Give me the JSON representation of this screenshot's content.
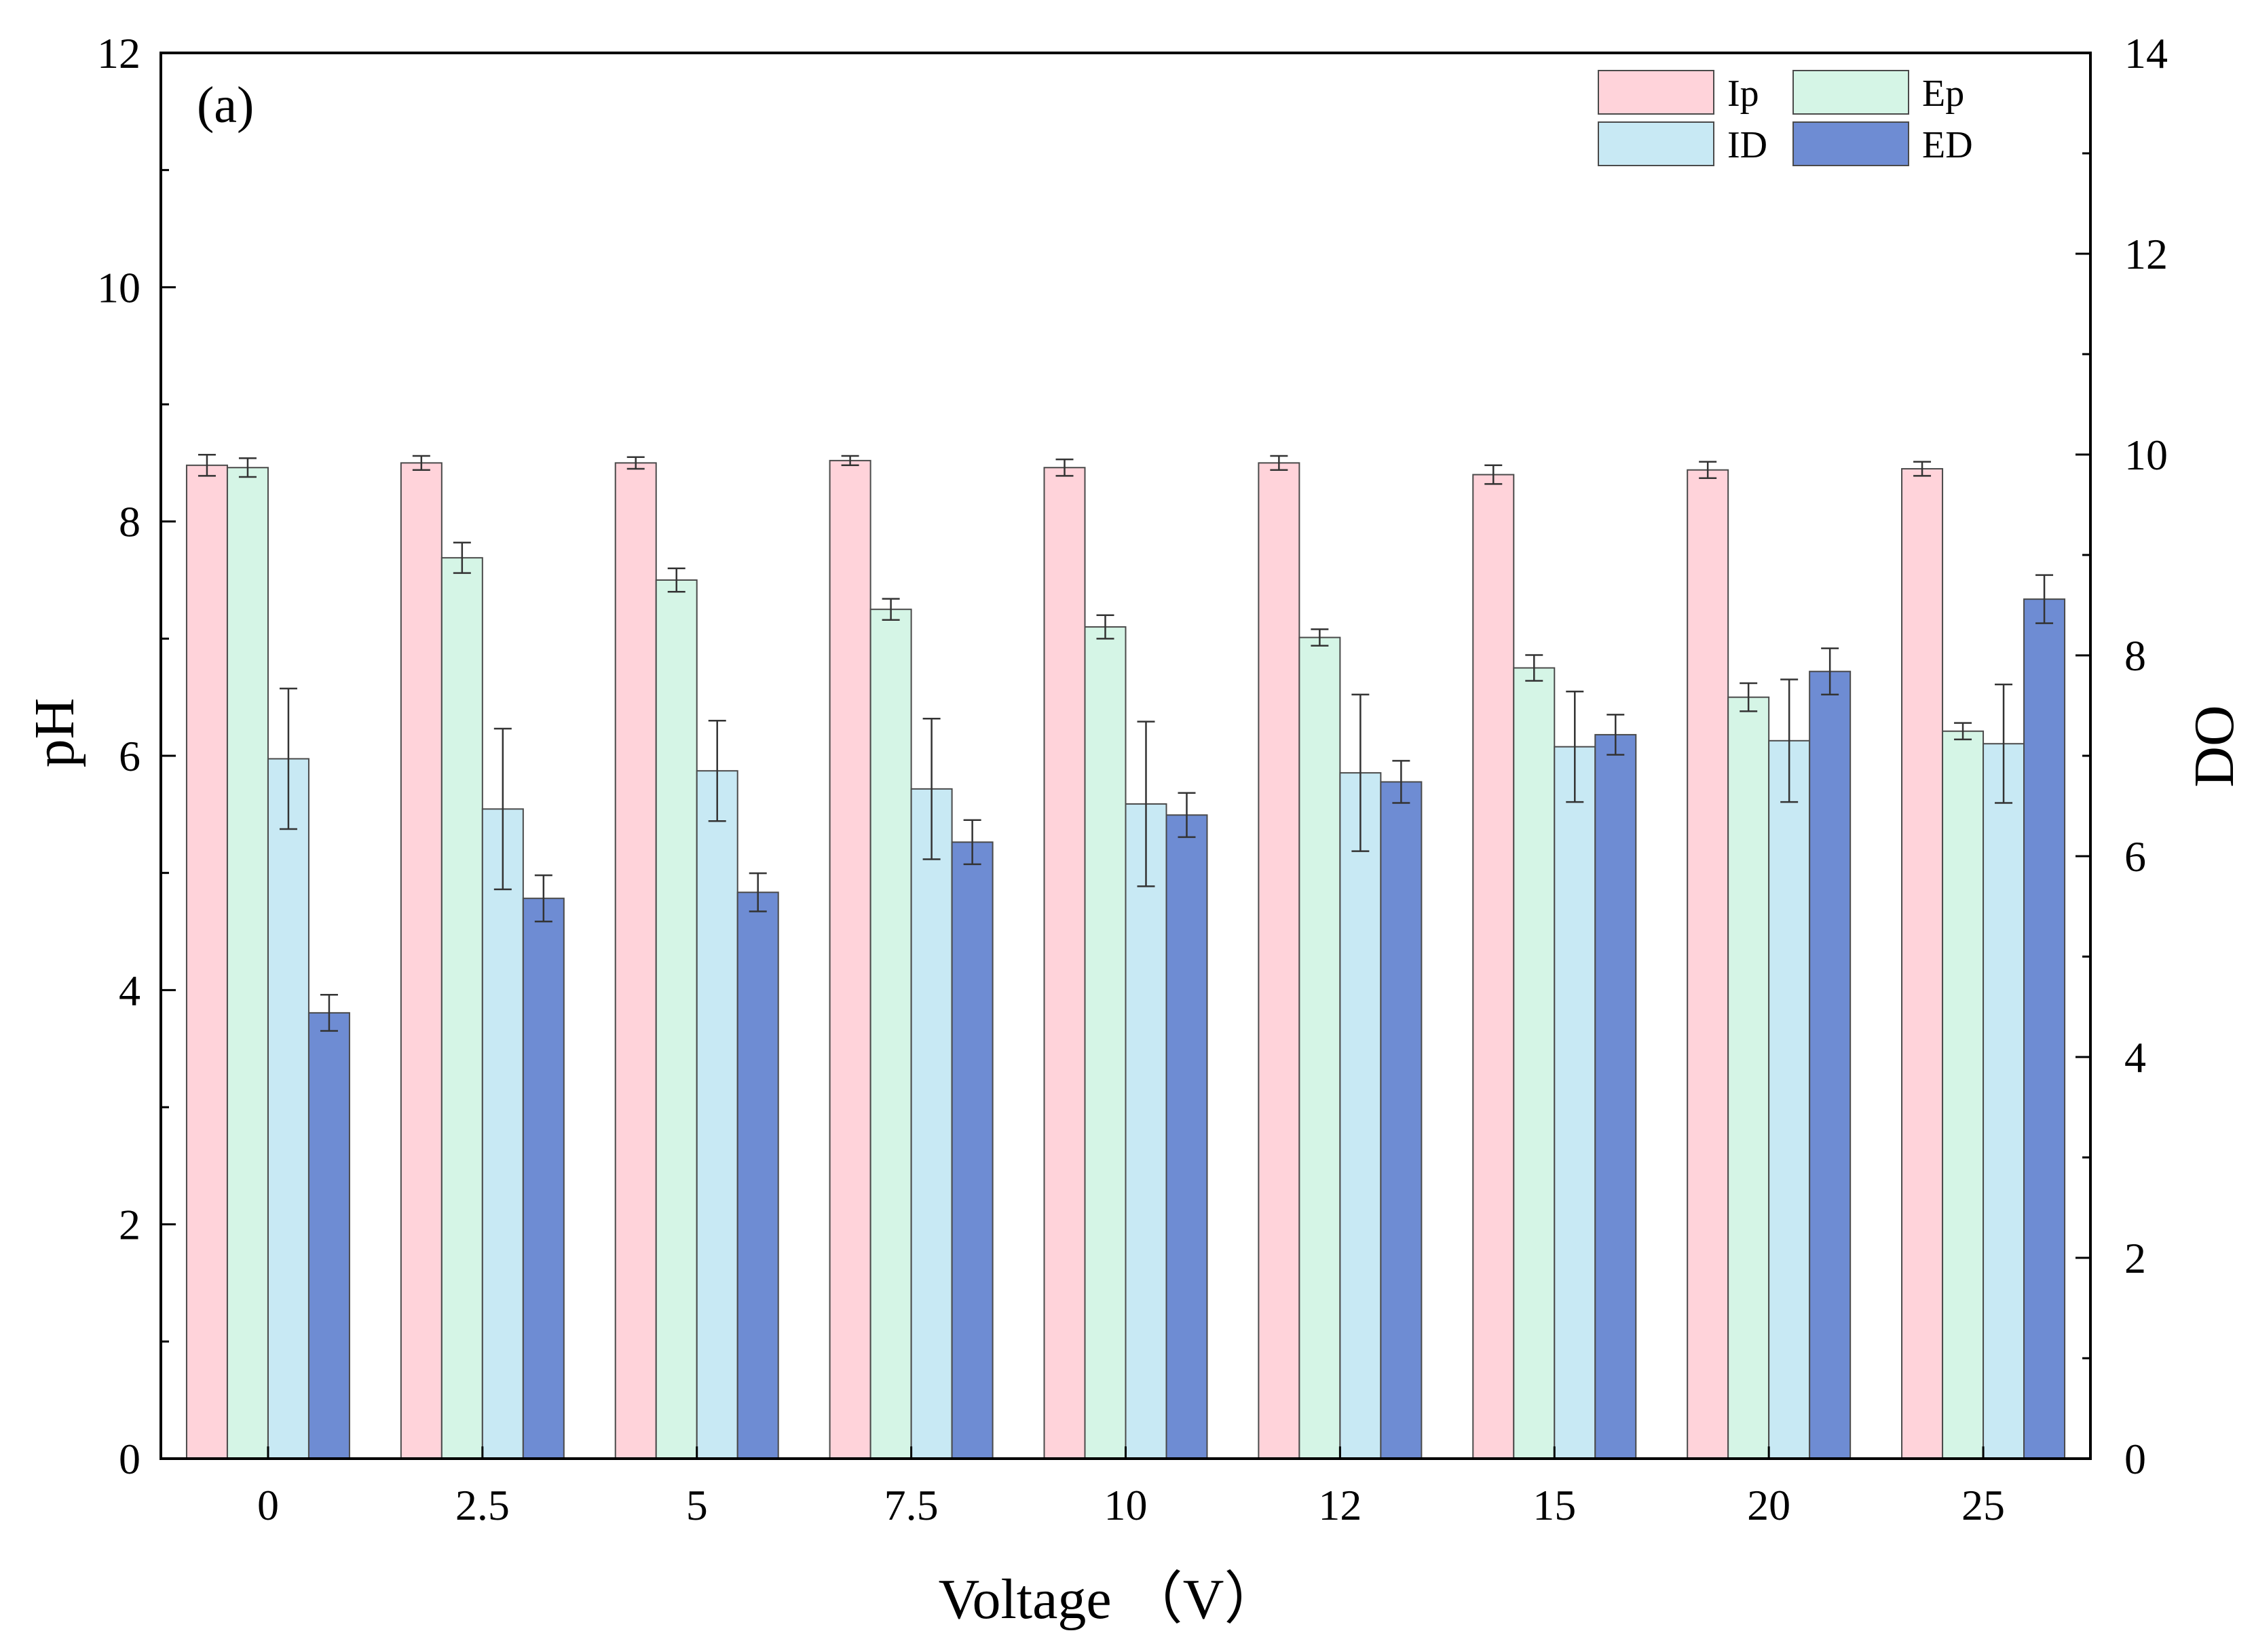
{
  "chart_data": {
    "type": "bar",
    "panel_label": "(a)",
    "xlabel": "Voltage （V）",
    "ylabel": "pH",
    "y2label": "DO",
    "ylim": [
      0,
      12
    ],
    "y2lim": [
      0,
      14
    ],
    "yticks": [
      "0",
      "2",
      "4",
      "6",
      "8",
      "10",
      "12"
    ],
    "y2ticks": [
      "0",
      "2",
      "4",
      "6",
      "8",
      "10",
      "12",
      "14"
    ],
    "categories": [
      "0",
      "2.5",
      "5",
      "7.5",
      "10",
      "12",
      "15",
      "20",
      "25"
    ],
    "series": [
      {
        "name": "Ip",
        "axis": "left",
        "color": "#FFD3DA",
        "values": [
          8.48,
          8.5,
          8.5,
          8.52,
          8.46,
          8.5,
          8.4,
          8.44,
          8.45
        ],
        "errors": [
          0.09,
          0.06,
          0.05,
          0.04,
          0.07,
          0.06,
          0.08,
          0.07,
          0.06
        ]
      },
      {
        "name": "Ep",
        "axis": "left",
        "color": "#D5F5E6",
        "values": [
          8.46,
          7.69,
          7.5,
          7.25,
          7.1,
          7.01,
          6.75,
          6.5,
          6.21
        ],
        "errors": [
          0.08,
          0.13,
          0.1,
          0.09,
          0.1,
          0.07,
          0.11,
          0.12,
          0.07
        ]
      },
      {
        "name": "ID",
        "axis": "right",
        "color": "#C8E9F4",
        "values": [
          6.97,
          6.47,
          6.85,
          6.67,
          6.52,
          6.83,
          7.09,
          7.15,
          7.12
        ],
        "errors": [
          0.7,
          0.8,
          0.5,
          0.7,
          0.82,
          0.78,
          0.55,
          0.61,
          0.59
        ]
      },
      {
        "name": "ED",
        "axis": "right",
        "color": "#6E8CD3",
        "values": [
          4.44,
          5.58,
          5.64,
          6.14,
          6.41,
          6.74,
          7.21,
          7.84,
          8.56
        ],
        "errors": [
          0.18,
          0.23,
          0.19,
          0.22,
          0.22,
          0.21,
          0.2,
          0.23,
          0.24
        ]
      }
    ],
    "legend": {
      "position": "top-right",
      "columns": 2,
      "order": [
        "Ip",
        "Ep",
        "ID",
        "ED"
      ]
    },
    "grid": false
  }
}
